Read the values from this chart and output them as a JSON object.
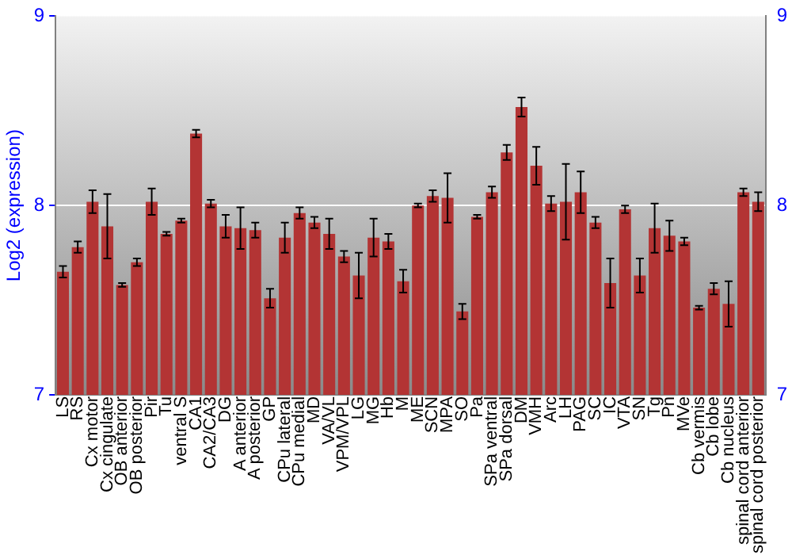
{
  "chart_data": {
    "type": "bar",
    "ylabel": "Log2 (expression)",
    "categories": [
      "LS",
      "RS",
      "Cx motor",
      "Cx cingulate",
      "OB anterior",
      "OB posterior",
      "Pir",
      "Tu",
      "ventral S",
      "CA1",
      "CA2/CA3",
      "DG",
      "A anterior",
      "A posterior",
      "GP",
      "CPu lateral",
      "CPu medial",
      "MD",
      "VA/VL",
      "VPM/VPL",
      "LG",
      "MG",
      "Hb",
      "M",
      "ME",
      "SCN",
      "MPA",
      "SO",
      "Pa",
      "SPa ventral",
      "SPa dorsal",
      "DM",
      "VMH",
      "Arc",
      "LH",
      "PAG",
      "SC",
      "IC",
      "VTA",
      "SN",
      "Tg",
      "Pn",
      "MVe",
      "Cb vermis",
      "Cb lobe",
      "Cb nucleus",
      "spinal cord anterior",
      "spinal cord posterior"
    ],
    "values": [
      7.65,
      7.78,
      8.02,
      7.89,
      7.58,
      7.7,
      8.02,
      7.85,
      7.92,
      8.38,
      8.01,
      7.89,
      7.88,
      7.87,
      7.51,
      7.83,
      7.96,
      7.91,
      7.85,
      7.73,
      7.63,
      7.83,
      7.81,
      7.6,
      8.0,
      8.05,
      8.04,
      7.44,
      7.94,
      8.07,
      8.28,
      8.52,
      8.21,
      8.01,
      8.02,
      8.07,
      7.91,
      7.59,
      7.98,
      7.63,
      7.88,
      7.84,
      7.81,
      7.46,
      7.56,
      7.48,
      8.07,
      8.02
    ],
    "errors": [
      0.03,
      0.03,
      0.06,
      0.17,
      0.01,
      0.02,
      0.07,
      0.01,
      0.01,
      0.02,
      0.02,
      0.06,
      0.11,
      0.04,
      0.05,
      0.08,
      0.03,
      0.03,
      0.08,
      0.03,
      0.12,
      0.1,
      0.04,
      0.06,
      0.01,
      0.03,
      0.13,
      0.04,
      0.01,
      0.03,
      0.04,
      0.05,
      0.1,
      0.04,
      0.2,
      0.11,
      0.03,
      0.13,
      0.02,
      0.09,
      0.13,
      0.08,
      0.02,
      0.01,
      0.03,
      0.12,
      0.02,
      0.05
    ],
    "color": "#b33434",
    "ylim": [
      7,
      9
    ],
    "yticks": [
      7,
      8,
      9
    ],
    "y2lim": [
      7,
      9
    ],
    "y2ticks": [
      7,
      8,
      9
    ],
    "grid": "y",
    "legend": false
  }
}
